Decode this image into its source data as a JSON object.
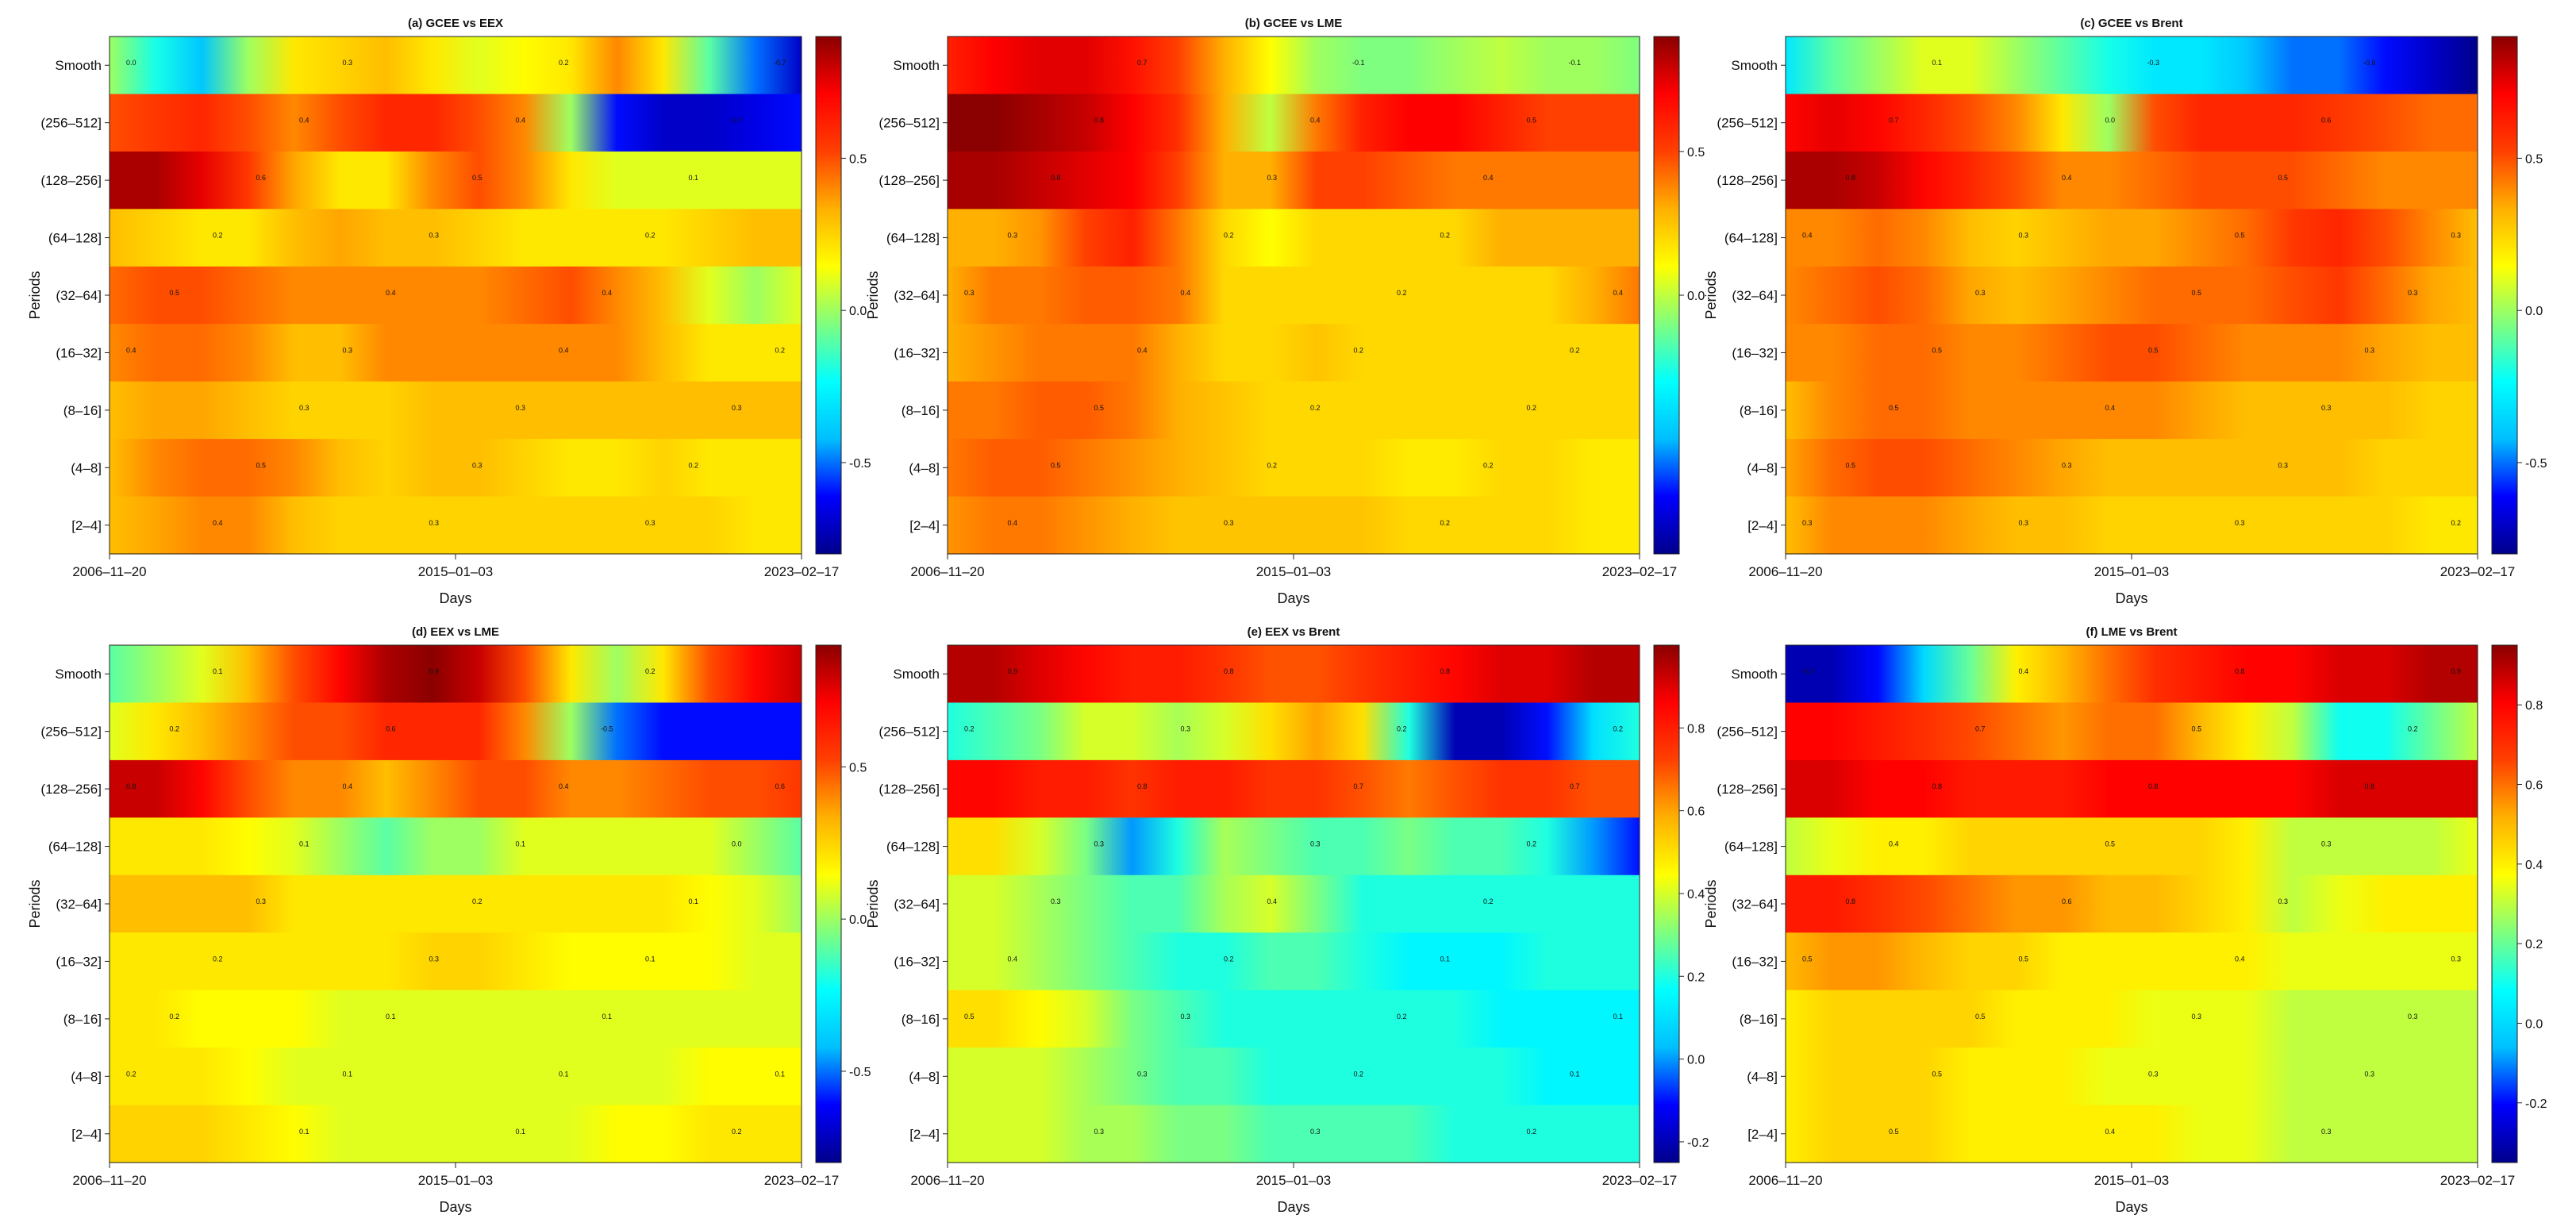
{
  "figure": {
    "x_axis_label": "Days",
    "y_axis_label": "Periods",
    "period_labels": [
      "Smooth",
      "(256–512]",
      "(128–256]",
      "(64–128]",
      "(32–64]",
      "(16–32]",
      "(8–16]",
      "(4–8]",
      "[2–4]"
    ],
    "date_ticks": [
      "2006–11–20",
      "2015–01–03",
      "2023–02–17"
    ],
    "colormap": [
      "#00008B",
      "#0000FF",
      "#00BFFF",
      "#00FFFF",
      "#7FFF7F",
      "#FFFF00",
      "#FFB000",
      "#FF4000",
      "#FF0000",
      "#8B0000"
    ]
  },
  "chart_data": [
    {
      "type": "heatmap",
      "title": "(a) GCEE vs EEX",
      "rows": [
        "Smooth",
        "(256–512]",
        "(128–256]",
        "(64–128]",
        "(32–64]",
        "(16–32]",
        "(8–16]",
        "(4–8]",
        "[2–4]"
      ],
      "x_ticks": [
        "2006–11–20",
        "2015–01–03",
        "2023–02–17"
      ],
      "xlabel": "Days",
      "ylabel": "Periods",
      "colorbar_ticks": [
        "-0.5",
        "0.0",
        "0.5"
      ],
      "value_range": [
        -0.8,
        0.9
      ],
      "values": [
        [
          0.0,
          -0.2,
          -0.4,
          0.0,
          0.2,
          0.25,
          0.3,
          0.2,
          0.1,
          0.15,
          0.2,
          0.4,
          0.2,
          -0.1,
          -0.5,
          -0.7
        ],
        [
          0.5,
          0.55,
          0.6,
          0.5,
          0.4,
          0.5,
          0.6,
          0.6,
          0.5,
          0.4,
          0.0,
          -0.6,
          -0.7,
          -0.7,
          -0.65,
          -0.6
        ],
        [
          0.85,
          0.85,
          0.75,
          0.55,
          0.35,
          0.2,
          0.2,
          0.4,
          0.5,
          0.4,
          0.2,
          0.1,
          0.1,
          0.1,
          0.1,
          0.1
        ],
        [
          0.3,
          0.25,
          0.2,
          0.2,
          0.3,
          0.35,
          0.3,
          0.3,
          0.25,
          0.2,
          0.2,
          0.2,
          0.2,
          0.25,
          0.3,
          0.3
        ],
        [
          0.45,
          0.5,
          0.5,
          0.45,
          0.4,
          0.4,
          0.4,
          0.4,
          0.4,
          0.45,
          0.5,
          0.4,
          0.3,
          0.1,
          0.0,
          0.1
        ],
        [
          0.4,
          0.45,
          0.45,
          0.4,
          0.3,
          0.3,
          0.4,
          0.4,
          0.4,
          0.4,
          0.4,
          0.4,
          0.3,
          0.2,
          0.2,
          0.2
        ],
        [
          0.3,
          0.35,
          0.35,
          0.3,
          0.25,
          0.25,
          0.25,
          0.3,
          0.3,
          0.3,
          0.3,
          0.3,
          0.3,
          0.3,
          0.3,
          0.3
        ],
        [
          0.3,
          0.4,
          0.45,
          0.45,
          0.4,
          0.3,
          0.25,
          0.3,
          0.3,
          0.25,
          0.2,
          0.2,
          0.25,
          0.2,
          0.2,
          0.2
        ],
        [
          0.3,
          0.35,
          0.4,
          0.4,
          0.3,
          0.25,
          0.25,
          0.25,
          0.25,
          0.25,
          0.25,
          0.25,
          0.25,
          0.25,
          0.2,
          0.2
        ]
      ]
    },
    {
      "type": "heatmap",
      "title": "(b) GCEE vs LME",
      "rows": [
        "Smooth",
        "(256–512]",
        "(128–256]",
        "(64–128]",
        "(32–64]",
        "(16–32]",
        "(8–16]",
        "(4–8]",
        "[2–4]"
      ],
      "x_ticks": [
        "2006–11–20",
        "2015–01–03",
        "2023–02–17"
      ],
      "xlabel": "Days",
      "ylabel": "Periods",
      "colorbar_ticks": [
        "0.0",
        "0.5"
      ],
      "value_range": [
        -0.9,
        0.9
      ],
      "values": [
        [
          0.6,
          0.7,
          0.75,
          0.75,
          0.65,
          0.5,
          0.3,
          0.1,
          -0.05,
          -0.1,
          -0.1,
          -0.05,
          0.0,
          -0.05,
          -0.05,
          -0.1
        ],
        [
          0.9,
          0.9,
          0.85,
          0.8,
          0.7,
          0.55,
          0.3,
          0.0,
          0.4,
          0.6,
          0.7,
          0.7,
          0.6,
          0.5,
          0.5,
          0.5
        ],
        [
          0.85,
          0.85,
          0.8,
          0.75,
          0.7,
          0.5,
          0.3,
          0.3,
          0.5,
          0.5,
          0.45,
          0.4,
          0.4,
          0.4,
          0.4,
          0.4
        ],
        [
          0.3,
          0.3,
          0.35,
          0.5,
          0.6,
          0.4,
          0.2,
          0.1,
          0.2,
          0.2,
          0.2,
          0.2,
          0.3,
          0.3,
          0.3,
          0.3
        ],
        [
          0.3,
          0.4,
          0.4,
          0.45,
          0.45,
          0.4,
          0.2,
          0.2,
          0.2,
          0.2,
          0.2,
          0.2,
          0.2,
          0.2,
          0.3,
          0.4
        ],
        [
          0.3,
          0.35,
          0.4,
          0.4,
          0.4,
          0.3,
          0.2,
          0.2,
          0.25,
          0.2,
          0.2,
          0.2,
          0.2,
          0.2,
          0.2,
          0.2
        ],
        [
          0.4,
          0.4,
          0.45,
          0.45,
          0.4,
          0.3,
          0.25,
          0.2,
          0.2,
          0.2,
          0.2,
          0.2,
          0.2,
          0.2,
          0.2,
          0.2
        ],
        [
          0.4,
          0.45,
          0.45,
          0.4,
          0.35,
          0.3,
          0.25,
          0.2,
          0.2,
          0.2,
          0.15,
          0.15,
          0.2,
          0.2,
          0.15,
          0.15
        ],
        [
          0.35,
          0.4,
          0.4,
          0.35,
          0.3,
          0.25,
          0.25,
          0.25,
          0.25,
          0.25,
          0.2,
          0.2,
          0.2,
          0.2,
          0.15,
          0.15
        ]
      ]
    },
    {
      "type": "heatmap",
      "title": "(c) GCEE vs Brent",
      "rows": [
        "Smooth",
        "(256–512]",
        "(128–256]",
        "(64–128]",
        "(32–64]",
        "(16–32]",
        "(8–16]",
        "(4–8]",
        "[2–4]"
      ],
      "x_ticks": [
        "2006–11–20",
        "2015–01–03",
        "2023–02–17"
      ],
      "xlabel": "Days",
      "ylabel": "Periods",
      "colorbar_ticks": [
        "-0.5",
        "0.0",
        "0.5"
      ],
      "value_range": [
        -0.8,
        0.9
      ],
      "values": [
        [
          -0.3,
          -0.1,
          0.0,
          0.1,
          0.1,
          0.0,
          -0.1,
          -0.2,
          -0.3,
          -0.3,
          -0.4,
          -0.5,
          -0.5,
          -0.6,
          -0.7,
          -0.8
        ],
        [
          0.7,
          0.75,
          0.7,
          0.6,
          0.5,
          0.4,
          0.2,
          0.0,
          0.5,
          0.6,
          0.6,
          0.6,
          0.55,
          0.5,
          0.45,
          0.45
        ],
        [
          0.85,
          0.85,
          0.8,
          0.7,
          0.6,
          0.5,
          0.4,
          0.4,
          0.45,
          0.5,
          0.5,
          0.5,
          0.45,
          0.4,
          0.4,
          0.4
        ],
        [
          0.4,
          0.4,
          0.45,
          0.4,
          0.3,
          0.25,
          0.3,
          0.35,
          0.35,
          0.4,
          0.45,
          0.55,
          0.6,
          0.5,
          0.4,
          0.3
        ],
        [
          0.4,
          0.45,
          0.5,
          0.45,
          0.35,
          0.3,
          0.35,
          0.4,
          0.45,
          0.45,
          0.45,
          0.5,
          0.55,
          0.45,
          0.35,
          0.3
        ],
        [
          0.4,
          0.4,
          0.45,
          0.45,
          0.4,
          0.4,
          0.45,
          0.5,
          0.5,
          0.45,
          0.4,
          0.4,
          0.4,
          0.35,
          0.3,
          0.3
        ],
        [
          0.3,
          0.4,
          0.45,
          0.45,
          0.4,
          0.4,
          0.4,
          0.4,
          0.4,
          0.35,
          0.3,
          0.3,
          0.3,
          0.3,
          0.25,
          0.25
        ],
        [
          0.35,
          0.45,
          0.5,
          0.5,
          0.45,
          0.4,
          0.35,
          0.3,
          0.3,
          0.3,
          0.3,
          0.3,
          0.3,
          0.25,
          0.25,
          0.25
        ],
        [
          0.3,
          0.4,
          0.4,
          0.4,
          0.35,
          0.3,
          0.3,
          0.25,
          0.25,
          0.25,
          0.25,
          0.25,
          0.25,
          0.25,
          0.2,
          0.2
        ]
      ]
    },
    {
      "type": "heatmap",
      "title": "(d) EEX vs LME",
      "rows": [
        "Smooth",
        "(256–512]",
        "(128–256]",
        "(64–128]",
        "(32–64]",
        "(16–32]",
        "(8–16]",
        "(4–8]",
        "[2–4]"
      ],
      "x_ticks": [
        "2006–11–20",
        "2015–01–03",
        "2023–02–17"
      ],
      "xlabel": "Days",
      "ylabel": "Periods",
      "colorbar_ticks": [
        "-0.5",
        "0.0",
        "0.5"
      ],
      "value_range": [
        -0.8,
        0.9
      ],
      "values": [
        [
          -0.1,
          0.0,
          0.1,
          0.3,
          0.5,
          0.7,
          0.85,
          0.9,
          0.8,
          0.5,
          0.2,
          0.0,
          0.2,
          0.5,
          0.7,
          0.8
        ],
        [
          0.1,
          0.2,
          0.3,
          0.4,
          0.5,
          0.5,
          0.6,
          0.6,
          0.6,
          0.4,
          0.0,
          -0.5,
          -0.6,
          -0.6,
          -0.6,
          -0.6
        ],
        [
          0.8,
          0.8,
          0.7,
          0.5,
          0.4,
          0.4,
          0.3,
          0.4,
          0.5,
          0.5,
          0.4,
          0.4,
          0.45,
          0.5,
          0.5,
          0.55
        ],
        [
          0.2,
          0.2,
          0.2,
          0.15,
          0.1,
          0.0,
          -0.1,
          0.0,
          0.0,
          0.1,
          0.1,
          0.1,
          0.1,
          0.1,
          0.0,
          -0.1
        ],
        [
          0.3,
          0.3,
          0.3,
          0.3,
          0.2,
          0.2,
          0.2,
          0.2,
          0.2,
          0.2,
          0.2,
          0.2,
          0.2,
          0.15,
          0.1,
          0.0
        ],
        [
          0.2,
          0.2,
          0.2,
          0.2,
          0.2,
          0.2,
          0.2,
          0.25,
          0.25,
          0.2,
          0.15,
          0.15,
          0.15,
          0.15,
          0.1,
          0.1
        ],
        [
          0.2,
          0.2,
          0.15,
          0.15,
          0.15,
          0.1,
          0.1,
          0.1,
          0.1,
          0.1,
          0.1,
          0.1,
          0.1,
          0.1,
          0.1,
          0.1
        ],
        [
          0.2,
          0.2,
          0.2,
          0.15,
          0.1,
          0.1,
          0.1,
          0.1,
          0.1,
          0.1,
          0.1,
          0.1,
          0.1,
          0.15,
          0.15,
          0.15
        ],
        [
          0.25,
          0.25,
          0.25,
          0.2,
          0.15,
          0.1,
          0.1,
          0.1,
          0.1,
          0.1,
          0.1,
          0.15,
          0.15,
          0.2,
          0.2,
          0.2
        ]
      ]
    },
    {
      "type": "heatmap",
      "title": "(e) EEX vs Brent",
      "rows": [
        "Smooth",
        "(256–512]",
        "(128–256]",
        "(64–128]",
        "(32–64]",
        "(16–32]",
        "(8–16]",
        "(4–8]",
        "[2–4]"
      ],
      "x_ticks": [
        "2006–11–20",
        "2015–01–03",
        "2023–02–17"
      ],
      "xlabel": "Days",
      "ylabel": "Periods",
      "colorbar_ticks": [
        "-0.2",
        "0.0",
        "0.2",
        "0.4",
        "0.6",
        "0.8"
      ],
      "value_range": [
        -0.25,
        1.0
      ],
      "values": [
        [
          0.95,
          0.95,
          0.9,
          0.85,
          0.8,
          0.8,
          0.75,
          0.7,
          0.7,
          0.75,
          0.8,
          0.85,
          0.9,
          0.9,
          0.95,
          0.95
        ],
        [
          0.2,
          0.25,
          0.3,
          0.4,
          0.4,
          0.35,
          0.4,
          0.5,
          0.6,
          0.5,
          0.2,
          -0.2,
          -0.2,
          -0.1,
          0.1,
          0.2
        ],
        [
          0.85,
          0.85,
          0.8,
          0.8,
          0.75,
          0.8,
          0.8,
          0.75,
          0.75,
          0.7,
          0.65,
          0.7,
          0.75,
          0.75,
          0.7,
          0.7
        ],
        [
          0.5,
          0.5,
          0.4,
          0.3,
          0.0,
          0.2,
          0.35,
          0.3,
          0.25,
          0.25,
          0.3,
          0.25,
          0.25,
          0.2,
          0.0,
          -0.1
        ],
        [
          0.4,
          0.4,
          0.35,
          0.3,
          0.25,
          0.25,
          0.35,
          0.4,
          0.3,
          0.2,
          0.2,
          0.2,
          0.2,
          0.2,
          0.2,
          0.2
        ],
        [
          0.4,
          0.4,
          0.35,
          0.3,
          0.25,
          0.2,
          0.2,
          0.25,
          0.25,
          0.2,
          0.15,
          0.15,
          0.15,
          0.2,
          0.2,
          0.2
        ],
        [
          0.5,
          0.5,
          0.45,
          0.4,
          0.3,
          0.25,
          0.2,
          0.2,
          0.2,
          0.2,
          0.2,
          0.2,
          0.15,
          0.15,
          0.15,
          0.15
        ],
        [
          0.4,
          0.4,
          0.4,
          0.35,
          0.3,
          0.25,
          0.25,
          0.2,
          0.2,
          0.2,
          0.2,
          0.2,
          0.2,
          0.15,
          0.15,
          0.15
        ],
        [
          0.4,
          0.4,
          0.4,
          0.35,
          0.35,
          0.3,
          0.3,
          0.25,
          0.25,
          0.25,
          0.25,
          0.2,
          0.2,
          0.2,
          0.2,
          0.2
        ]
      ]
    },
    {
      "type": "heatmap",
      "title": "(f) LME vs Brent",
      "rows": [
        "Smooth",
        "(256–512]",
        "(128–256]",
        "(64–128]",
        "(32–64]",
        "(16–32]",
        "(8–16]",
        "(4–8]",
        "[2–4]"
      ],
      "x_ticks": [
        "2006–11–20",
        "2015–01–03",
        "2023–02–17"
      ],
      "xlabel": "Days",
      "ylabel": "Periods",
      "colorbar_ticks": [
        "-0.2",
        "0.0",
        "0.2",
        "0.4",
        "0.6",
        "0.8"
      ],
      "value_range": [
        -0.35,
        0.95
      ],
      "values": [
        [
          -0.3,
          -0.3,
          -0.2,
          0.0,
          0.2,
          0.4,
          0.5,
          0.6,
          0.7,
          0.75,
          0.8,
          0.8,
          0.85,
          0.85,
          0.9,
          0.9
        ],
        [
          0.8,
          0.8,
          0.75,
          0.7,
          0.65,
          0.6,
          0.55,
          0.6,
          0.6,
          0.5,
          0.4,
          0.3,
          0.1,
          0.1,
          0.2,
          0.3
        ],
        [
          0.85,
          0.85,
          0.8,
          0.8,
          0.75,
          0.75,
          0.75,
          0.8,
          0.8,
          0.8,
          0.8,
          0.8,
          0.85,
          0.85,
          0.85,
          0.85
        ],
        [
          0.3,
          0.35,
          0.4,
          0.4,
          0.45,
          0.45,
          0.45,
          0.45,
          0.45,
          0.45,
          0.4,
          0.3,
          0.3,
          0.3,
          0.3,
          0.35
        ],
        [
          0.75,
          0.75,
          0.7,
          0.65,
          0.6,
          0.55,
          0.55,
          0.5,
          0.5,
          0.45,
          0.4,
          0.3,
          0.35,
          0.4,
          0.4,
          0.4
        ],
        [
          0.5,
          0.55,
          0.55,
          0.5,
          0.45,
          0.45,
          0.4,
          0.4,
          0.4,
          0.4,
          0.4,
          0.35,
          0.35,
          0.35,
          0.35,
          0.35
        ],
        [
          0.4,
          0.45,
          0.45,
          0.45,
          0.45,
          0.4,
          0.4,
          0.4,
          0.35,
          0.35,
          0.35,
          0.3,
          0.3,
          0.3,
          0.3,
          0.3
        ],
        [
          0.4,
          0.45,
          0.45,
          0.45,
          0.4,
          0.4,
          0.4,
          0.35,
          0.35,
          0.35,
          0.35,
          0.3,
          0.3,
          0.3,
          0.3,
          0.3
        ],
        [
          0.4,
          0.45,
          0.45,
          0.45,
          0.4,
          0.4,
          0.4,
          0.4,
          0.4,
          0.35,
          0.35,
          0.3,
          0.3,
          0.3,
          0.3,
          0.3
        ]
      ]
    }
  ]
}
